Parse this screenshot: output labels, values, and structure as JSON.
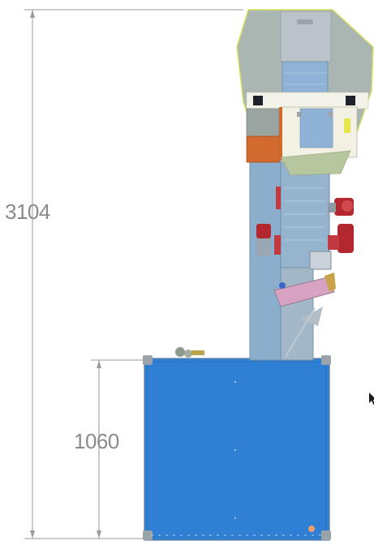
{
  "drawing": {
    "dimensions": [
      {
        "name": "overall-height",
        "value": "3104"
      },
      {
        "name": "base-height",
        "value": "1060"
      }
    ]
  },
  "colors": {
    "base_blue": "#2f7fd4",
    "column_blue": "#8aaecc",
    "hood_gray": "#aab6b2",
    "hood_outline": "#d8e25a",
    "orange_box": "#d2692e",
    "red_motor": "#b3272e",
    "dim_line": "#9a9a9a",
    "dim_text": "#8a8a8a"
  },
  "cursor": {
    "icon": "mouse-pointer-icon"
  }
}
